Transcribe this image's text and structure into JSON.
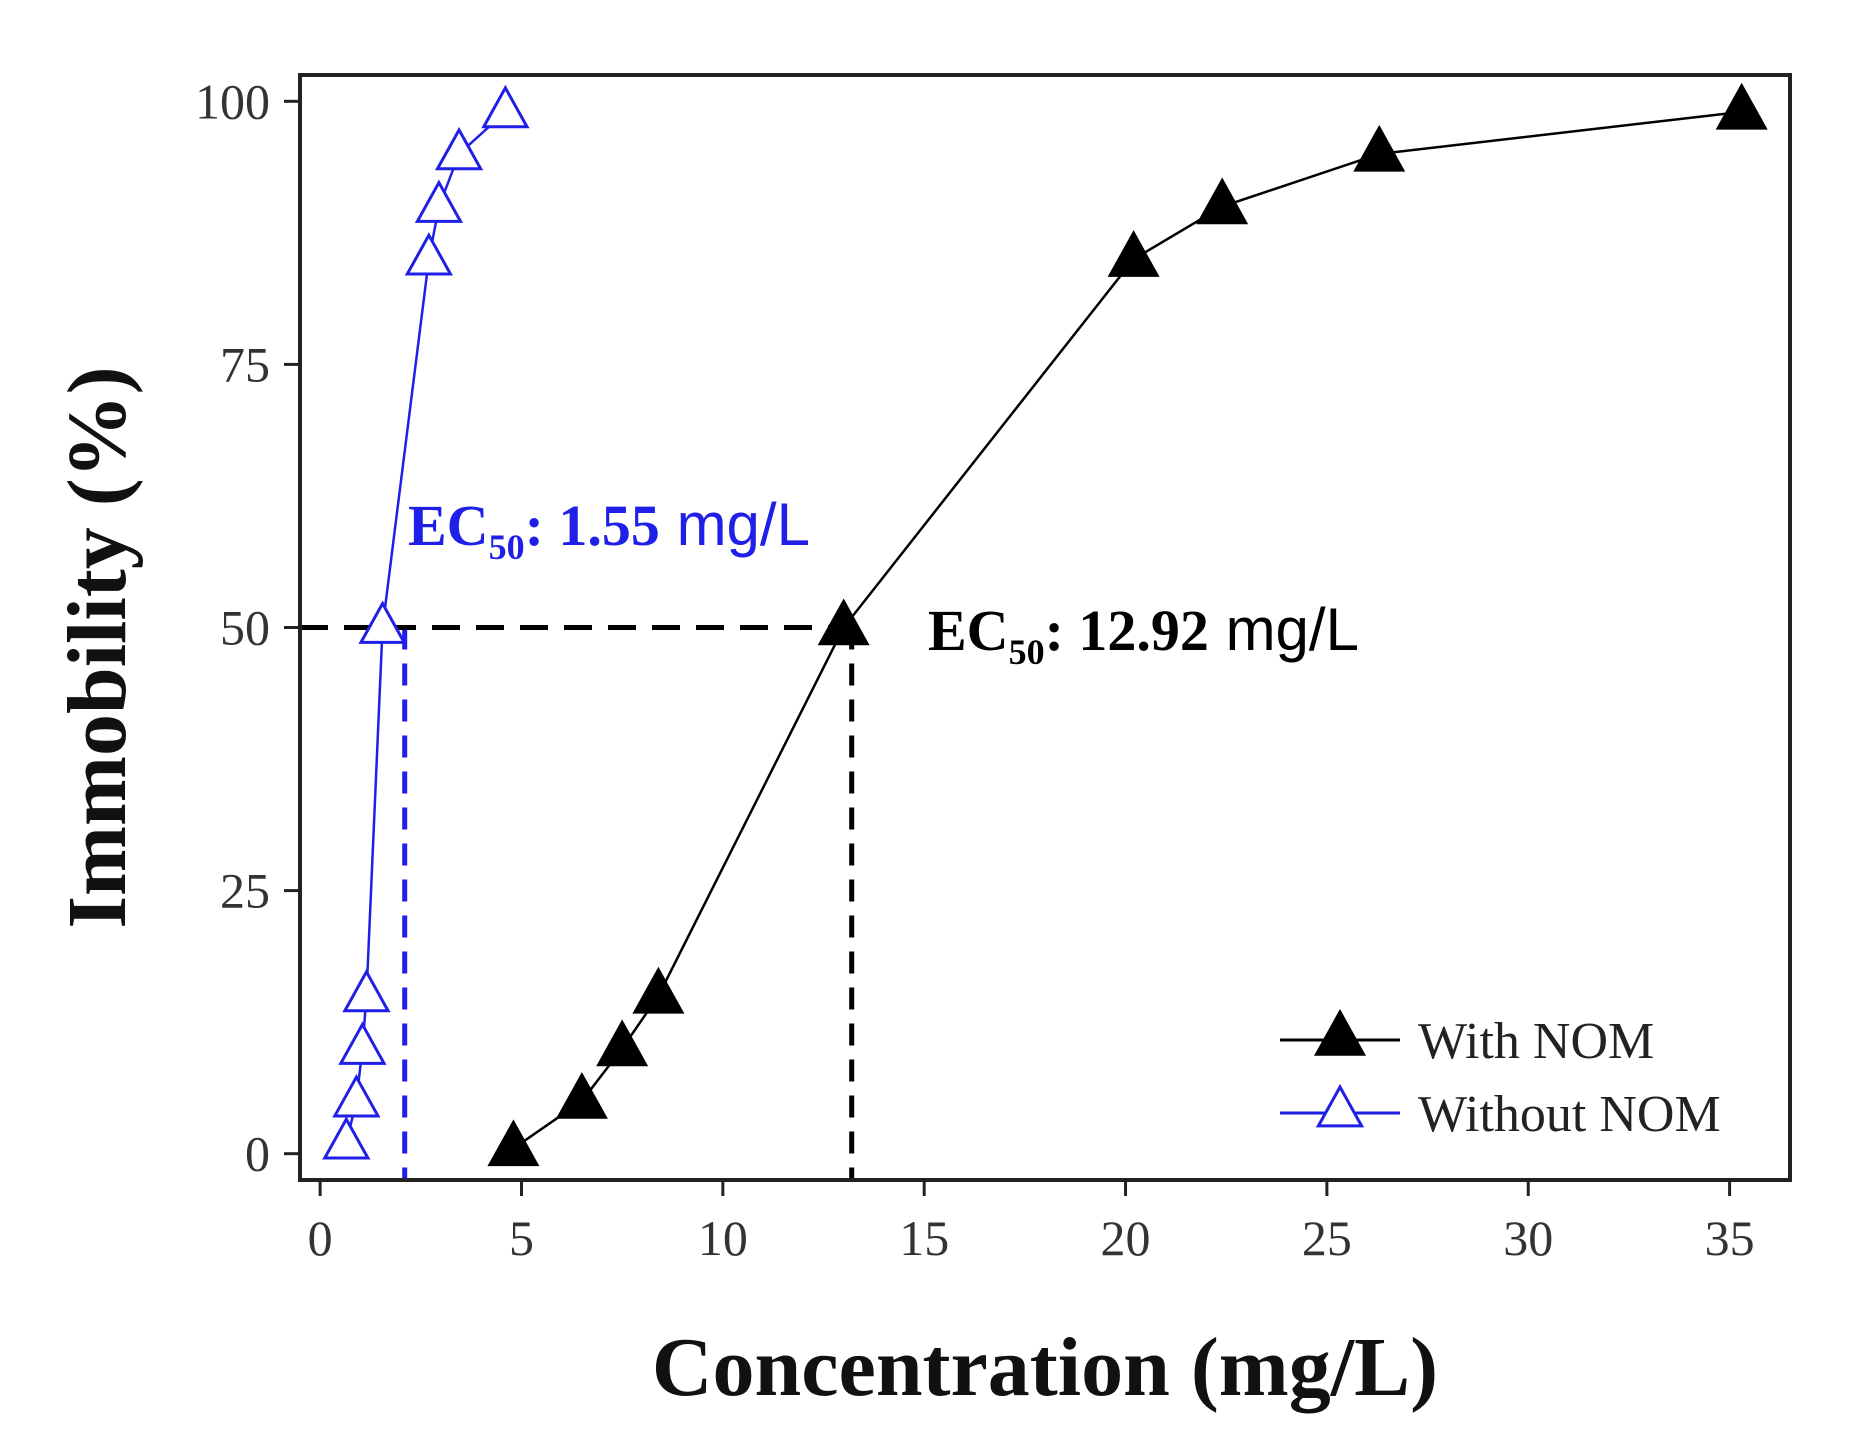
{
  "chart_data": {
    "type": "line",
    "title": "",
    "xlabel": "Concentration (mg/L)",
    "ylabel": "Immobility (%)",
    "xlim": [
      -0.5,
      36.5
    ],
    "ylim": [
      -2.5,
      102.5
    ],
    "xticks": [
      0,
      5,
      10,
      15,
      20,
      25,
      30,
      35
    ],
    "yticks": [
      0,
      25,
      50,
      75,
      100
    ],
    "grid": false,
    "legend_position": "bottom-right",
    "colors": {
      "with_nom": "#000000",
      "without_nom": "#1f1fe8",
      "axis": "#222222"
    },
    "series": [
      {
        "name": "With NOM",
        "marker": "filled-triangle",
        "x": [
          4.8,
          6.5,
          7.5,
          8.4,
          13.0,
          20.2,
          22.4,
          26.3,
          35.3
        ],
        "y": [
          0.5,
          5,
          10,
          15,
          50,
          85,
          90,
          95,
          99
        ]
      },
      {
        "name": "Without NOM",
        "marker": "open-triangle",
        "x": [
          0.65,
          0.9,
          1.05,
          1.15,
          1.55,
          2.7,
          2.95,
          3.45,
          4.6
        ],
        "y": [
          1,
          5,
          10,
          15,
          50,
          85,
          90,
          95,
          99
        ]
      }
    ],
    "annotations": [
      {
        "label": "EC",
        "subscript": "50",
        "value_text": ": 1.55",
        "unit_text": " mg/L",
        "series": "Without NOM",
        "x": 2.1,
        "y": 50
      },
      {
        "label": "EC",
        "subscript": "50",
        "value_text": ": 12.92",
        "unit_text": " mg/L",
        "series": "With NOM",
        "x": 13.2,
        "y": 50
      }
    ]
  }
}
